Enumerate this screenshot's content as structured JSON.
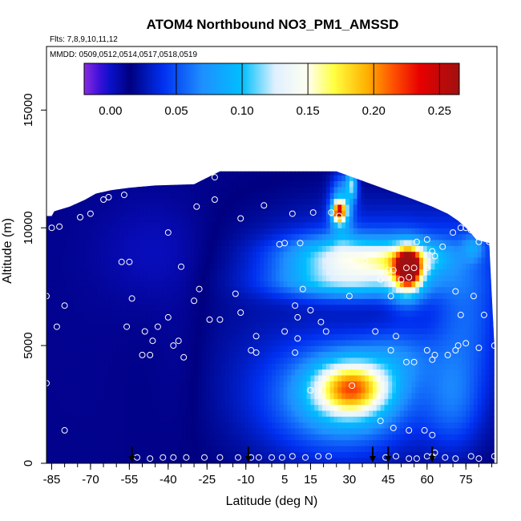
{
  "chart_data": {
    "type": "heatmap",
    "title": "ATOM4 Northbound NO3_PM1_AMSSD",
    "flights_label": "Flts: 7,8,9,10,11,12",
    "dates_label": "MMDD: 0509,0512,0514,0517,0518,0519",
    "xlabel": "Latitude (deg N)",
    "ylabel": "Altitude (m)",
    "xlim": [
      -87,
      87
    ],
    "ylim": [
      0,
      17700
    ],
    "x_ticks": [
      -85,
      -70,
      -55,
      -40,
      -25,
      -10,
      5,
      15,
      30,
      45,
      60,
      75
    ],
    "x_tick_labels": [
      "-85",
      "-70",
      "-55",
      "-40",
      "-25",
      "-10",
      "5",
      "15",
      "30",
      "45",
      "60",
      "75"
    ],
    "x_minor_step": 5,
    "y_ticks": [
      0,
      5000,
      10000,
      15000
    ],
    "y_tick_labels": [
      "0",
      "5000",
      "10000",
      "15000"
    ],
    "colorbar": {
      "range": [
        -0.02,
        0.265
      ],
      "ticks": [
        0.0,
        0.05,
        0.1,
        0.15,
        0.2,
        0.25
      ],
      "tick_labels": [
        "0.00",
        "0.05",
        "0.10",
        "0.15",
        "0.20",
        "0.25"
      ],
      "dividers": [
        0.05,
        0.1,
        0.15,
        0.2,
        0.25
      ],
      "stops": [
        {
          "v": -0.02,
          "c": "#8a2be2"
        },
        {
          "v": -0.008,
          "c": "#3a10d8"
        },
        {
          "v": 0.0,
          "c": "#0a10c8"
        },
        {
          "v": 0.015,
          "c": "#000080"
        },
        {
          "v": 0.04,
          "c": "#0030f0"
        },
        {
          "v": 0.07,
          "c": "#1e90ff"
        },
        {
          "v": 0.1,
          "c": "#00bfff"
        },
        {
          "v": 0.125,
          "c": "#e0f0ff"
        },
        {
          "v": 0.15,
          "c": "#fffff0"
        },
        {
          "v": 0.17,
          "c": "#ffff40"
        },
        {
          "v": 0.195,
          "c": "#ffb000"
        },
        {
          "v": 0.215,
          "c": "#ff5000"
        },
        {
          "v": 0.235,
          "c": "#e80000"
        },
        {
          "v": 0.265,
          "c": "#a01010"
        }
      ]
    },
    "coverage": [
      [
        -87,
        0,
        10500
      ],
      [
        -86,
        0,
        10500
      ],
      [
        -85,
        0,
        10500
      ],
      [
        -84,
        0,
        10700
      ],
      [
        -78,
        0,
        10900
      ],
      [
        -72,
        0,
        11200
      ],
      [
        -68,
        0,
        11450
      ],
      [
        -62,
        0,
        11600
      ],
      [
        -55,
        0,
        11700
      ],
      [
        -45,
        0,
        11800
      ],
      [
        -30,
        0,
        11850
      ],
      [
        -20,
        0,
        12400
      ],
      [
        -5,
        0,
        12400
      ],
      [
        10,
        0,
        12400
      ],
      [
        20,
        0,
        12400
      ],
      [
        25,
        0,
        12400
      ],
      [
        35,
        0,
        12000
      ],
      [
        45,
        0,
        11600
      ],
      [
        55,
        0,
        11200
      ],
      [
        62,
        0,
        10900
      ],
      [
        68,
        0,
        10600
      ],
      [
        72,
        0,
        10300
      ],
      [
        76,
        0,
        9900
      ],
      [
        79,
        0,
        9500
      ],
      [
        84,
        0,
        9350
      ],
      [
        86,
        0,
        5000
      ]
    ],
    "blobs": [
      {
        "x": 31,
        "y": 3200,
        "sx": 10,
        "sy": 800,
        "a": 0.13
      },
      {
        "x": 28,
        "y": 2800,
        "sx": 20,
        "sy": 1700,
        "a": 0.075
      },
      {
        "x": 30,
        "y": 8800,
        "sx": 18,
        "sy": 600,
        "a": 0.09
      },
      {
        "x": 30,
        "y": 7700,
        "sx": 20,
        "sy": 500,
        "a": 0.075
      },
      {
        "x": 40,
        "y": 9200,
        "sx": 30,
        "sy": 1500,
        "a": 0.03
      },
      {
        "x": 53,
        "y": 8300,
        "sx": 3,
        "sy": 500,
        "a": 0.19
      },
      {
        "x": 52,
        "y": 8000,
        "sx": 5,
        "sy": 900,
        "a": 0.07
      },
      {
        "x": 48,
        "y": 8600,
        "sx": 10,
        "sy": 400,
        "a": 0.04
      },
      {
        "x": 26,
        "y": 10700,
        "sx": 1.8,
        "sy": 300,
        "a": 0.17
      },
      {
        "x": 27,
        "y": 11000,
        "sx": 3,
        "sy": 900,
        "a": 0.07
      },
      {
        "x": 31,
        "y": 11900,
        "sx": 1.5,
        "sy": 500,
        "a": 0.08
      },
      {
        "x": 50,
        "y": 4600,
        "sx": 10,
        "sy": 900,
        "a": 0.03
      },
      {
        "x": 75,
        "y": 6200,
        "sx": 10,
        "sy": 2500,
        "a": 0.04
      },
      {
        "x": 70,
        "y": 2500,
        "sx": 8,
        "sy": 1500,
        "a": 0.03
      },
      {
        "x": 60,
        "y": 8800,
        "sx": 8,
        "sy": 500,
        "a": 0.03
      },
      {
        "x": 78,
        "y": 9200,
        "sx": 3,
        "sy": 400,
        "a": 0.035
      },
      {
        "x": -45,
        "y": 9000,
        "sx": 15,
        "sy": 1500,
        "a": -0.01
      },
      {
        "x": -35,
        "y": 4500,
        "sx": 8,
        "sy": 2500,
        "a": -0.006
      },
      {
        "x": -30,
        "y": 6000,
        "sx": 50,
        "sy": 6000,
        "a": -0.004
      },
      {
        "x": -10,
        "y": 4500,
        "sx": 25,
        "sy": 3500,
        "a": 0.012
      }
    ],
    "arrows": [
      -54,
      -9,
      39,
      45,
      62
    ],
    "points": [
      [
        -85,
        10000
      ],
      [
        -82,
        10050
      ],
      [
        -74,
        10450
      ],
      [
        -70,
        10600
      ],
      [
        -65,
        11200
      ],
      [
        -63,
        11300
      ],
      [
        -57,
        11400
      ],
      [
        -22,
        12150
      ],
      [
        -40,
        9800
      ],
      [
        -29,
        10900
      ],
      [
        -22,
        11200
      ],
      [
        -12,
        10400
      ],
      [
        -3,
        10950
      ],
      [
        3,
        9300
      ],
      [
        5,
        9350
      ],
      [
        11,
        9350
      ],
      [
        8,
        10600
      ],
      [
        16,
        10650
      ],
      [
        23,
        10650
      ],
      [
        26,
        10500
      ],
      [
        -58,
        8550
      ],
      [
        -55,
        8550
      ],
      [
        -54,
        7000
      ],
      [
        -35,
        8350
      ],
      [
        -28,
        7400
      ],
      [
        -87,
        7100
      ],
      [
        -80,
        6700
      ],
      [
        -24,
        6100
      ],
      [
        -20,
        6100
      ],
      [
        -14,
        7200
      ],
      [
        -6,
        5400
      ],
      [
        -44,
        5800
      ],
      [
        -40,
        6200
      ],
      [
        -36,
        5200
      ],
      [
        -30,
        6900
      ],
      [
        -49,
        5600
      ],
      [
        -46,
        5200
      ],
      [
        -47,
        4600
      ],
      [
        -50,
        4600
      ],
      [
        -56,
        5800
      ],
      [
        -83,
        5800
      ],
      [
        -87,
        3400
      ],
      [
        -80,
        1400
      ],
      [
        -38,
        5000
      ],
      [
        -34,
        4500
      ],
      [
        -12,
        6400
      ],
      [
        -8,
        4800
      ],
      [
        -6,
        4700
      ],
      [
        5,
        5600
      ],
      [
        9,
        6700
      ],
      [
        10,
        6200
      ],
      [
        12,
        7400
      ],
      [
        15,
        6500
      ],
      [
        19,
        6000
      ],
      [
        21,
        5600
      ],
      [
        9,
        4700
      ],
      [
        10,
        5300
      ],
      [
        30,
        7100
      ],
      [
        36,
        8600
      ],
      [
        46,
        7100
      ],
      [
        42,
        7800
      ],
      [
        45,
        8200
      ],
      [
        47,
        8200
      ],
      [
        50,
        7800
      ],
      [
        53,
        7900
      ],
      [
        52,
        8300
      ],
      [
        55,
        8300
      ],
      [
        60,
        8300
      ],
      [
        56,
        9400
      ],
      [
        60,
        9500
      ],
      [
        62,
        9000
      ],
      [
        63,
        8800
      ],
      [
        66,
        9200
      ],
      [
        70,
        9800
      ],
      [
        73,
        10000
      ],
      [
        75,
        10000
      ],
      [
        77,
        9900
      ],
      [
        80,
        9400
      ],
      [
        84,
        9400
      ],
      [
        71,
        7300
      ],
      [
        73,
        6300
      ],
      [
        78,
        7100
      ],
      [
        82,
        6300
      ],
      [
        80,
        4900
      ],
      [
        86,
        5000
      ],
      [
        71,
        4800
      ],
      [
        68,
        4600
      ],
      [
        72,
        5000
      ],
      [
        75,
        5100
      ],
      [
        60,
        4800
      ],
      [
        62,
        4400
      ],
      [
        63,
        4600
      ],
      [
        55,
        4300
      ],
      [
        52,
        4300
      ],
      [
        46,
        4800
      ],
      [
        40,
        5600
      ],
      [
        48,
        5400
      ],
      [
        15,
        3100
      ],
      [
        31,
        3300
      ],
      [
        42,
        1800
      ],
      [
        47,
        1500
      ],
      [
        53,
        1400
      ],
      [
        59,
        1400
      ],
      [
        62,
        1200
      ],
      [
        44,
        250
      ],
      [
        48,
        300
      ],
      [
        53,
        200
      ],
      [
        56,
        200
      ],
      [
        60,
        300
      ],
      [
        62,
        300
      ],
      [
        63,
        450
      ],
      [
        67,
        250
      ],
      [
        71,
        200
      ],
      [
        77,
        300
      ],
      [
        80,
        200
      ],
      [
        86,
        300
      ],
      [
        -52,
        250
      ],
      [
        -47,
        200
      ],
      [
        -42,
        250
      ],
      [
        -38,
        250
      ],
      [
        -33,
        250
      ],
      [
        -26,
        250
      ],
      [
        -20,
        250
      ],
      [
        -13,
        250
      ],
      [
        -8,
        250
      ],
      [
        -5,
        250
      ],
      [
        0,
        250
      ],
      [
        4,
        250
      ],
      [
        8,
        300
      ],
      [
        13,
        250
      ],
      [
        18,
        300
      ],
      [
        22,
        300
      ]
    ]
  }
}
